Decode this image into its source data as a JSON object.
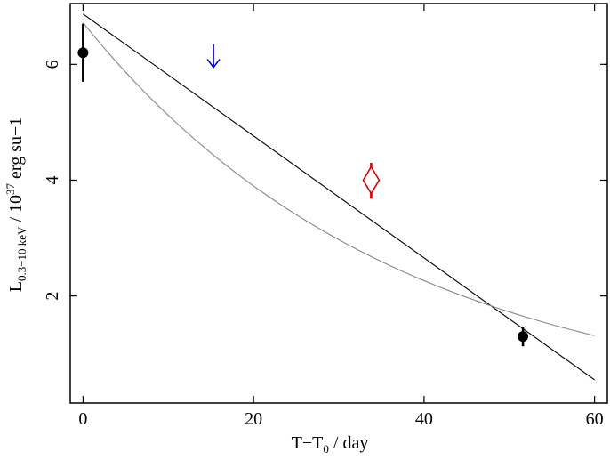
{
  "chart_data": {
    "type": "scatter",
    "xlabel": {
      "main": "T−T",
      "sub": "0",
      "rest": " / day"
    },
    "ylabel": {
      "main": "L",
      "sub": "0.3−10 keV",
      "mid": " / 10",
      "sup": "37",
      "rest": " erg su−1"
    },
    "xlim": [
      -1.5,
      61.5
    ],
    "ylim": [
      0.15,
      7.05
    ],
    "xticks": [
      0,
      20,
      40,
      60
    ],
    "yticks": [
      2,
      4,
      6
    ],
    "grid": false,
    "series": [
      {
        "marker": "filled-circle",
        "color": "#000000",
        "points": [
          {
            "x": 0.0,
            "y": 6.2,
            "ylo": 5.7,
            "yhi": 6.7
          },
          {
            "x": 51.6,
            "y": 1.3,
            "ylo": 1.13,
            "yhi": 1.47
          }
        ]
      },
      {
        "marker": "upper-limit-arrow",
        "color": "#0000cc",
        "points": [
          {
            "x": 15.3,
            "y": 6.15
          }
        ]
      },
      {
        "marker": "open-diamond",
        "color": "#dd0000",
        "points": [
          {
            "x": 33.8,
            "y": 4.0,
            "ylo": 3.68,
            "yhi": 4.3
          }
        ]
      }
    ],
    "models": [
      {
        "form": "linear",
        "color": "#000000",
        "x": [
          0,
          60
        ],
        "y": [
          6.87,
          0.55
        ]
      },
      {
        "form": "exponential",
        "color": "#888888",
        "x": [
          0,
          60
        ],
        "a": 6.72,
        "b": -0.0272
      }
    ]
  }
}
